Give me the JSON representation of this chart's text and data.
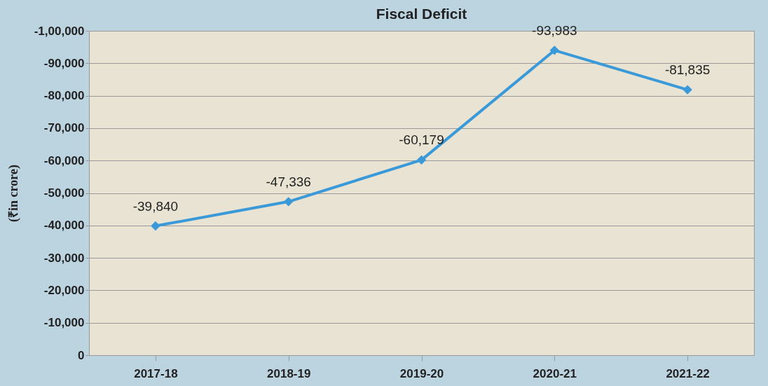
{
  "chart_data": {
    "type": "line",
    "title": "Fiscal Deficit",
    "ylabel": "(₹in crore)",
    "categories": [
      "2017-18",
      "2018-19",
      "2019-20",
      "2020-21",
      "2021-22"
    ],
    "series": [
      {
        "color": "#3a9ad9",
        "values": [
          -39840,
          -47336,
          -60179,
          -93983,
          -81835
        ],
        "value_labels": [
          "-39,840",
          "-47,336",
          "-60,179",
          "-93,983",
          "-81,835"
        ]
      }
    ],
    "ylim": [
      0,
      -100000
    ],
    "yticks": [
      0,
      {
        "value": -10000,
        "label": "-10,000"
      },
      {
        "value": -20000,
        "label": "-20,000"
      },
      {
        "value": -30000,
        "label": "-30,000"
      },
      {
        "value": -40000,
        "label": "-40,000"
      },
      {
        "value": -50000,
        "label": "-50,000"
      },
      {
        "value": -60000,
        "label": "-60,000"
      },
      {
        "value": -70000,
        "label": "-70,000"
      },
      {
        "value": -80000,
        "label": "-80,000"
      },
      {
        "value": -90000,
        "label": "-90,000"
      },
      {
        "value": -100000,
        "label": "-1,00,000"
      }
    ],
    "grid": "y",
    "marker": "diamond",
    "line_style": "solid"
  }
}
